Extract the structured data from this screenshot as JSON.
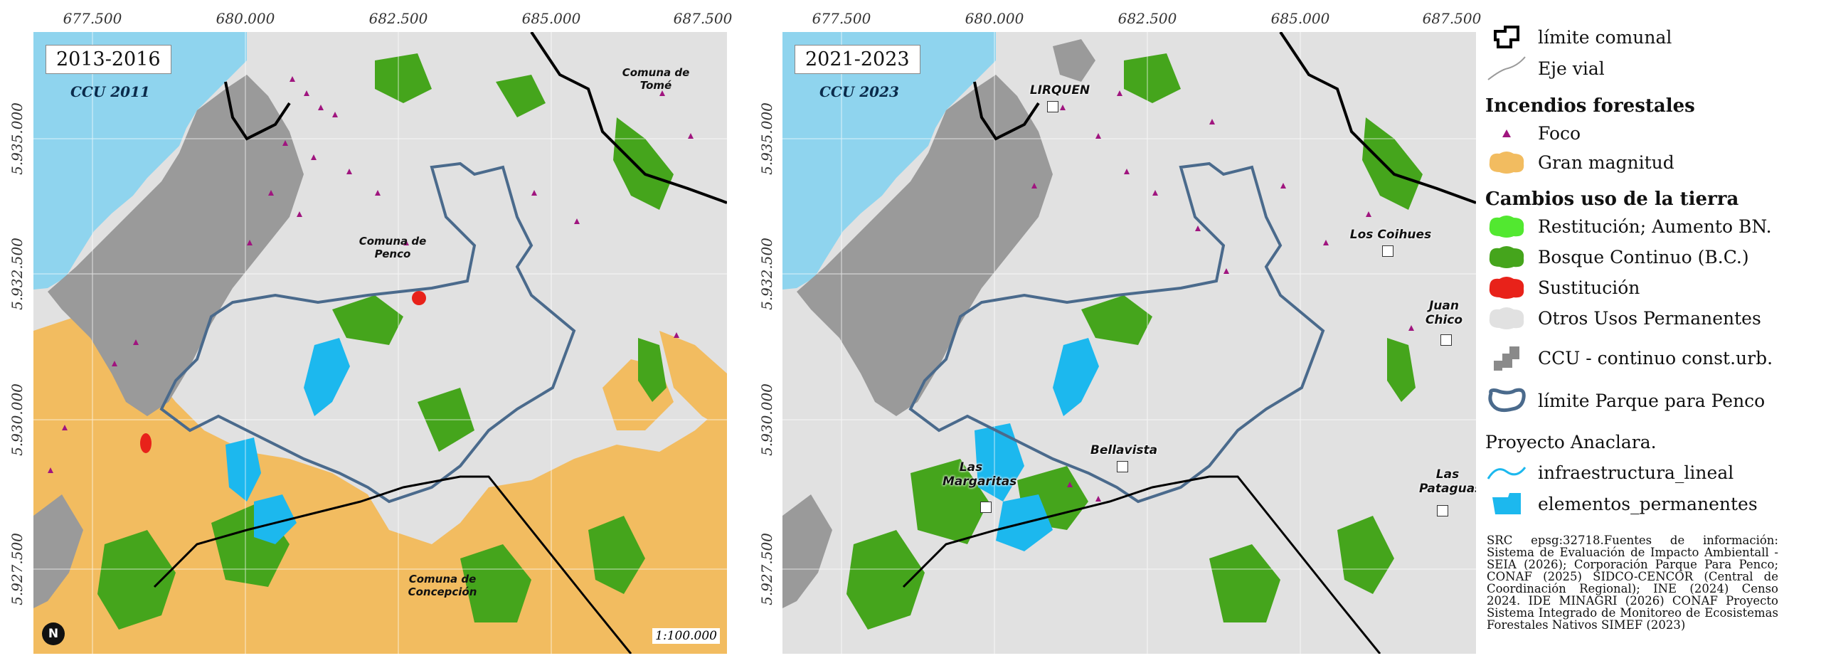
{
  "axes": {
    "x_ticks": [
      "677.500",
      "680.000",
      "682.500",
      "685.000",
      "687.500"
    ],
    "y_ticks": [
      "5.935.000",
      "5.932.500",
      "5.930.000",
      "5.927.500"
    ]
  },
  "map_left": {
    "period": "2013-2016",
    "ccu_label": "CCU 2011",
    "place_labels": {
      "tome": "Comuna de Tomé",
      "penco": "Comuna de Penco",
      "concepcion": "Comuna de Concepción"
    },
    "scale": "1:100.000",
    "north": "N"
  },
  "map_right": {
    "period": "2021-2023",
    "ccu_label": "CCU 2023",
    "localities": {
      "lirquen": "LIRQUEN",
      "los_coihues": "Los Coihues",
      "juan_chico": "Juan Chico",
      "bellavista": "Bellavista",
      "las_margaritas": "Las Margaritas",
      "las_pataguas": "Las Pataguas"
    }
  },
  "legend": {
    "limite_comunal": "límite comunal",
    "eje_vial": "Eje vial",
    "incendios_title": "Incendios forestales",
    "foco": "Foco",
    "gran_magnitud": "Gran magnitud",
    "cambios_title": "Cambios uso de la tierra",
    "restitucion": "Restitución; Aumento BN.",
    "bosque_continuo": "Bosque Continuo (B.C.)",
    "sustitucion": "Sustitución",
    "otros_usos": "Otros Usos Permanentes",
    "ccu": "CCU - continuo const.urb.",
    "limite_parque": "límite Parque para Penco",
    "proyecto": "Proyecto Anaclara.",
    "infraestructura": "infraestructura_lineal",
    "elementos": "elementos_permanentes",
    "sources": "SRC epsg:32718.Fuentes de información: Sistema de Evaluación de Impacto Ambientall -SEIA (2026); Corporación Parque Para Penco; CONAF (2025) SIDCO-CENCOR (Central de Coordinación Regional); INE (2024) Censo 2024. IDE MINAGRI (2026) CONAF Proyecto Sistema Integrado de Monitoreo de Ecosistemas Forestales Nativos SIMEF (2023)"
  },
  "colors": {
    "sea": "#8fd4ee",
    "background": "#e1e1e1",
    "urban": "#9a9a9a",
    "forest": "#45a51c",
    "restitution": "#52e830",
    "substitution": "#e8221a",
    "fire_large": "#f2bc60",
    "fire_focus": "#a0157f",
    "park_boundary": "#4a6a8c",
    "water_elements": "#1cb8ee",
    "communal_limit": "#000000",
    "road": "#bdbdbd"
  }
}
